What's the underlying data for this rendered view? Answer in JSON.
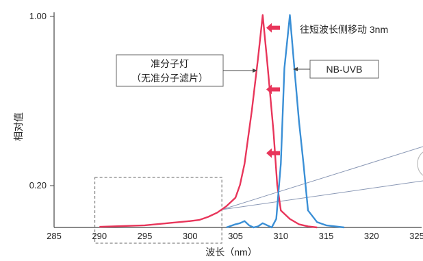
{
  "chart_data": {
    "type": "line",
    "ylabel": "相对值",
    "xlabel": "波长（nm）",
    "xlim": [
      285,
      325
    ],
    "xticks": [
      285,
      290,
      295,
      300,
      305,
      310,
      315,
      320,
      325
    ],
    "yticks": [
      {
        "value": 1.0,
        "label": "1.00"
      },
      {
        "value": 0.2,
        "label": "0.20"
      }
    ],
    "ylim": [
      0,
      1.0
    ],
    "series": [
      {
        "name": "准分子灯（无准分子滤片）",
        "color": "#e8355a",
        "points": [
          [
            290,
            0.003
          ],
          [
            295,
            0.01
          ],
          [
            297.5,
            0.02
          ],
          [
            300,
            0.03
          ],
          [
            301,
            0.035
          ],
          [
            302,
            0.05
          ],
          [
            303,
            0.07
          ],
          [
            304,
            0.1
          ],
          [
            305,
            0.14
          ],
          [
            305.5,
            0.2
          ],
          [
            306,
            0.3
          ],
          [
            306.8,
            0.55
          ],
          [
            307.5,
            0.8
          ],
          [
            308,
            1.0
          ],
          [
            308.5,
            0.78
          ],
          [
            309.2,
            0.45
          ],
          [
            309.6,
            0.2
          ],
          [
            310,
            0.08
          ],
          [
            311,
            0.04
          ],
          [
            312,
            0.015
          ],
          [
            313,
            0.005
          ],
          [
            314,
            0.0
          ]
        ]
      },
      {
        "name": "NB-UVB",
        "color": "#3a8fd6",
        "points": [
          [
            304,
            0.0
          ],
          [
            305,
            0.015
          ],
          [
            305.5,
            0.02
          ],
          [
            306,
            0.03
          ],
          [
            306.5,
            0.01
          ],
          [
            307,
            0.0
          ],
          [
            307.5,
            0.005
          ],
          [
            308,
            0.02
          ],
          [
            308.5,
            0.01
          ],
          [
            309,
            0.0
          ],
          [
            309.5,
            0.04
          ],
          [
            310,
            0.3
          ],
          [
            310.4,
            0.75
          ],
          [
            311,
            1.0
          ],
          [
            311.5,
            0.75
          ],
          [
            312,
            0.5
          ],
          [
            312.5,
            0.3
          ],
          [
            313,
            0.08
          ],
          [
            314,
            0.025
          ],
          [
            315,
            0.01
          ],
          [
            317,
            0.0
          ]
        ]
      }
    ],
    "annotations": {
      "shift_text": "往短波长侧移动 3nm",
      "excimer_label_line1": "准分子灯",
      "excimer_label_line2": "（无准分子滤片）",
      "nbuvb_label": "NB-UVB"
    },
    "arrow_y_values": [
      0.94,
      0.65,
      0.35
    ],
    "zoom_box_x_range": [
      289.5,
      303.5
    ]
  }
}
